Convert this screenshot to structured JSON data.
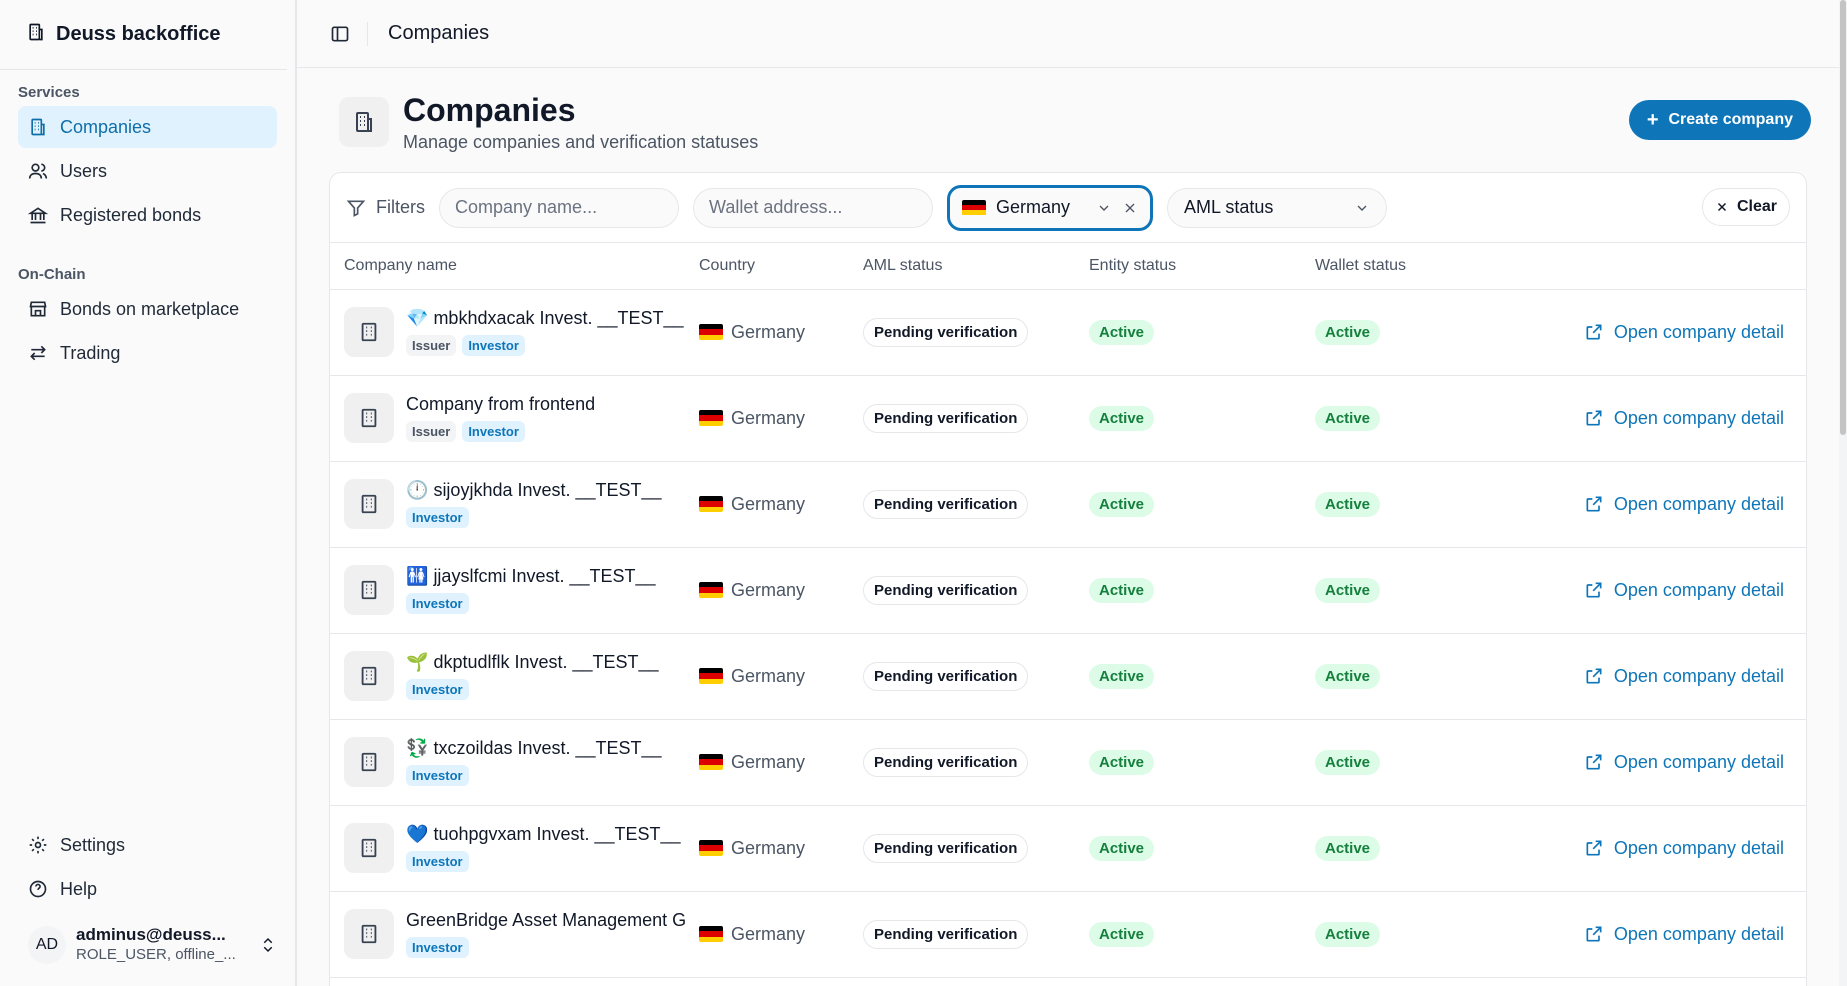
{
  "app": {
    "title": "Deuss backoffice"
  },
  "sidebar": {
    "services_label": "Services",
    "services": [
      {
        "label": "Companies",
        "icon": "building-icon",
        "active": true
      },
      {
        "label": "Users",
        "icon": "users-icon",
        "active": false
      },
      {
        "label": "Registered bonds",
        "icon": "bank-icon",
        "active": false
      }
    ],
    "onchain_label": "On-Chain",
    "onchain": [
      {
        "label": "Bonds on marketplace",
        "icon": "store-icon"
      },
      {
        "label": "Trading",
        "icon": "arrows-icon"
      }
    ],
    "settings_label": "Settings",
    "help_label": "Help",
    "user": {
      "initials": "AD",
      "email": "adminus@deuss...",
      "role": "ROLE_USER, offline_..."
    }
  },
  "topbar": {
    "title": "Companies"
  },
  "header": {
    "title": "Companies",
    "subtitle": "Manage companies and verification statuses",
    "create_label": "Create company"
  },
  "filters": {
    "label": "Filters",
    "company_placeholder": "Company name...",
    "wallet_placeholder": "Wallet address...",
    "country_value": "Germany",
    "aml_value": "AML status",
    "clear_label": "Clear"
  },
  "table": {
    "columns": [
      "Company name",
      "Country",
      "AML status",
      "Entity status",
      "Wallet status"
    ],
    "link_label": "Open company detail",
    "rows": [
      {
        "emoji": "💎",
        "name": "mbkhdxacak Invest. __TEST__",
        "tags": [
          "Issuer",
          "Investor"
        ],
        "country": "Germany",
        "aml": "Pending verification",
        "entity": "Active",
        "wallet": "Active"
      },
      {
        "emoji": "",
        "name": "Company from frontend",
        "tags": [
          "Issuer",
          "Investor"
        ],
        "country": "Germany",
        "aml": "Pending verification",
        "entity": "Active",
        "wallet": "Active"
      },
      {
        "emoji": "🕛",
        "name": "sijoyjkhda Invest. __TEST__",
        "tags": [
          "Investor"
        ],
        "country": "Germany",
        "aml": "Pending verification",
        "entity": "Active",
        "wallet": "Active"
      },
      {
        "emoji": "🚻",
        "name": "jjayslfcmi Invest. __TEST__",
        "tags": [
          "Investor"
        ],
        "country": "Germany",
        "aml": "Pending verification",
        "entity": "Active",
        "wallet": "Active"
      },
      {
        "emoji": "🌱",
        "name": "dkptudlflk Invest. __TEST__",
        "tags": [
          "Investor"
        ],
        "country": "Germany",
        "aml": "Pending verification",
        "entity": "Active",
        "wallet": "Active"
      },
      {
        "emoji": "💱",
        "name": "txczoildas Invest. __TEST__",
        "tags": [
          "Investor"
        ],
        "country": "Germany",
        "aml": "Pending verification",
        "entity": "Active",
        "wallet": "Active"
      },
      {
        "emoji": "💙",
        "name": "tuohpgvxam Invest. __TEST__",
        "tags": [
          "Investor"
        ],
        "country": "Germany",
        "aml": "Pending verification",
        "entity": "Active",
        "wallet": "Active"
      },
      {
        "emoji": "",
        "name": "GreenBridge Asset Management G",
        "tags": [
          "Investor"
        ],
        "country": "Germany",
        "aml": "Pending verification",
        "entity": "Active",
        "wallet": "Active"
      }
    ]
  }
}
